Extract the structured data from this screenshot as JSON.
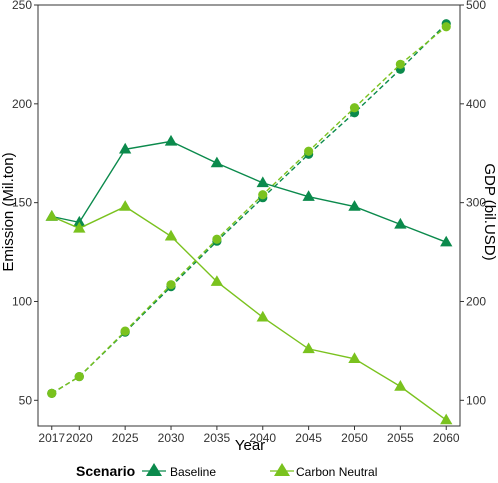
{
  "chart_data": {
    "type": "line",
    "x": [
      2017,
      2020,
      2025,
      2030,
      2035,
      2040,
      2045,
      2050,
      2055,
      2060
    ],
    "xlabel": "Year",
    "ylabel_left": "Emission (Mil.ton)",
    "ylabel_right": "GDP (bil.USD)",
    "ylim_left": [
      37,
      250
    ],
    "ylim_right": [
      74,
      500
    ],
    "yticks_left": [
      50,
      100,
      150,
      200,
      250
    ],
    "yticks_right": [
      100,
      200,
      300,
      400,
      500
    ],
    "grid": false,
    "legend": {
      "title": "Scenario",
      "position": "bottom",
      "entries": [
        "Baseline",
        "Carbon Neutral"
      ]
    },
    "series": [
      {
        "name": "Baseline",
        "axis": "left",
        "marker": "triangle",
        "line": "solid",
        "color": "#0b8a4c",
        "values": [
          143,
          140,
          177,
          181,
          170,
          160,
          153,
          148,
          139,
          130
        ]
      },
      {
        "name": "Carbon Neutral",
        "axis": "left",
        "marker": "triangle",
        "line": "solid",
        "color": "#7ac21e",
        "values": [
          143,
          137,
          148,
          133,
          110,
          92,
          76,
          71,
          57,
          40
        ]
      },
      {
        "name": "Baseline",
        "axis": "right",
        "marker": "circle",
        "line": "dashed",
        "color": "#0b8a4c",
        "values": [
          107,
          124,
          169,
          215,
          261,
          305,
          349,
          391,
          435,
          481
        ]
      },
      {
        "name": "Carbon Neutral",
        "axis": "right",
        "marker": "circle",
        "line": "dashed",
        "color": "#7ac21e",
        "values": [
          107,
          124,
          170,
          217,
          263,
          308,
          352,
          396,
          440,
          478
        ]
      }
    ]
  }
}
